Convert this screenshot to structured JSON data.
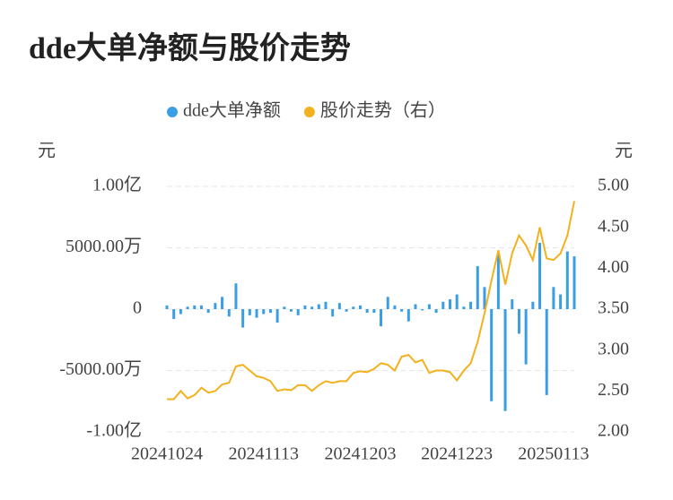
{
  "chart_data": {
    "type": "bar_line",
    "title": "dde大单净额与股价走势",
    "y_unit": "元",
    "y2_unit": "元",
    "categories": [
      "20241024",
      null,
      null,
      null,
      null,
      null,
      null,
      null,
      null,
      null,
      null,
      null,
      null,
      null,
      "20241113",
      null,
      null,
      null,
      null,
      null,
      null,
      null,
      null,
      null,
      null,
      null,
      null,
      null,
      "20241203",
      null,
      null,
      null,
      null,
      null,
      null,
      null,
      null,
      null,
      null,
      null,
      null,
      null,
      "20241223",
      null,
      null,
      null,
      null,
      null,
      null,
      null,
      null,
      null,
      null,
      null,
      null,
      null,
      "20250113",
      null,
      null,
      null
    ],
    "series": [
      {
        "name": "dde大单净额",
        "color": "#3a9ee4",
        "kind": "bar",
        "axis": "y",
        "values": [
          300,
          -800,
          -400,
          200,
          300,
          300,
          -300,
          500,
          1000,
          -600,
          2100,
          -1500,
          -500,
          -700,
          -400,
          -300,
          -1100,
          200,
          -200,
          -500,
          300,
          200,
          400,
          600,
          -600,
          500,
          -200,
          200,
          300,
          -300,
          -300,
          -1400,
          1000,
          300,
          -200,
          -1000,
          400,
          -100,
          400,
          -300,
          600,
          800,
          1200,
          200,
          600,
          3500,
          1800,
          -7500,
          4500,
          -8300,
          800,
          -2000,
          -4500,
          600,
          5400,
          -7000,
          1800,
          1200,
          4700,
          4300
        ]
      },
      {
        "name": "股价走势（右）",
        "color": "#f2b11d",
        "kind": "line",
        "axis": "y2",
        "values": [
          2.4,
          2.4,
          2.5,
          2.41,
          2.45,
          2.54,
          2.48,
          2.5,
          2.58,
          2.6,
          2.8,
          2.82,
          2.75,
          2.68,
          2.66,
          2.62,
          2.5,
          2.52,
          2.51,
          2.57,
          2.57,
          2.5,
          2.57,
          2.62,
          2.6,
          2.62,
          2.62,
          2.72,
          2.74,
          2.73,
          2.77,
          2.84,
          2.82,
          2.75,
          2.92,
          2.94,
          2.85,
          2.88,
          2.72,
          2.75,
          2.75,
          2.73,
          2.63,
          2.75,
          2.84,
          3.1,
          3.45,
          3.85,
          4.22,
          3.8,
          4.18,
          4.4,
          4.28,
          4.1,
          4.5,
          4.12,
          4.1,
          4.18,
          4.4,
          4.82
        ]
      }
    ],
    "ylim": [
      -10000,
      10000
    ],
    "yticks": [
      {
        "value": -10000,
        "label": "-1.00亿"
      },
      {
        "value": -5000,
        "label": "-5000.00万"
      },
      0,
      {
        "value": 5000,
        "label": "5000.00万"
      },
      {
        "value": 10000,
        "label": "1.00亿"
      }
    ],
    "y2lim": [
      2.0,
      5.0
    ],
    "y2ticks": [
      {
        "value": 2.0,
        "label": "2.00"
      },
      {
        "value": 2.5,
        "label": "2.50"
      },
      {
        "value": 3.0,
        "label": "3.00"
      },
      {
        "value": 3.5,
        "label": "3.50"
      },
      {
        "value": 4.0,
        "label": "4.00"
      },
      {
        "value": 4.5,
        "label": "4.50"
      },
      {
        "value": 5.0,
        "label": "5.00"
      }
    ],
    "grid": true
  }
}
